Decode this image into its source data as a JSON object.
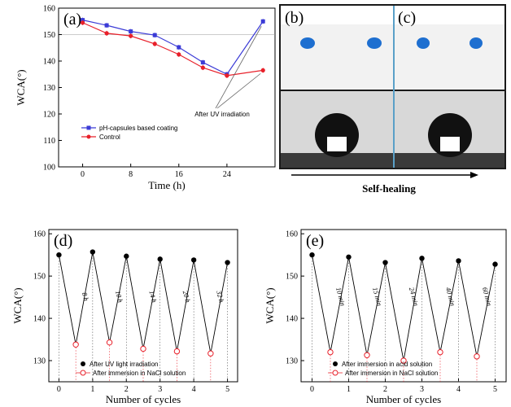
{
  "chart_data": [
    {
      "type": "line",
      "panel": "(a)",
      "xlabel": "Time (h)",
      "ylabel": "WCA(°)",
      "xlim": [
        -4,
        32
      ],
      "ylim": [
        100,
        160
      ],
      "xticks": [
        0,
        8,
        16,
        24
      ],
      "yticks": [
        100,
        110,
        120,
        130,
        140,
        150,
        160
      ],
      "reference_line_y": 150,
      "series": [
        {
          "name": "pH-capsules based coating",
          "color": "#3b3bd6",
          "marker": "square",
          "x": [
            0,
            4,
            8,
            12,
            16,
            20,
            24,
            30
          ],
          "y": [
            155.5,
            153.5,
            151.2,
            149.8,
            145.2,
            139.5,
            135.0,
            155.0
          ]
        },
        {
          "name": "Control",
          "color": "#e8202a",
          "marker": "circle",
          "x": [
            0,
            4,
            8,
            12,
            16,
            20,
            24,
            30
          ],
          "y": [
            154.5,
            150.5,
            149.5,
            146.5,
            142.5,
            137.5,
            134.5,
            136.5
          ]
        }
      ],
      "annotation": "After UV irradiation"
    },
    {
      "type": "line",
      "panel": "(d)",
      "xlabel": "Number of cycles",
      "ylabel": "WCA(°)",
      "xlim": [
        -0.3,
        5.3
      ],
      "ylim": [
        125,
        161
      ],
      "xticks": [
        0,
        1,
        2,
        3,
        4,
        5
      ],
      "yticks": [
        130,
        140,
        150,
        160
      ],
      "series": [
        {
          "name": "After UV light irradiation",
          "marker": "filled-circle",
          "x": [
            0,
            1,
            2,
            3,
            4,
            5
          ],
          "y": [
            155.0,
            155.7,
            154.7,
            154.0,
            153.8,
            153.2
          ]
        },
        {
          "name": "After immersion in NaCl solution",
          "marker": "open-circle",
          "color": "#e8202a",
          "x": [
            0.5,
            1.5,
            2.5,
            3.5,
            4.5
          ],
          "y": [
            133.8,
            134.3,
            132.8,
            132.2,
            131.7
          ]
        }
      ],
      "intervals": [
        "8 h",
        "10 h",
        "14 h",
        "20 h",
        "32 h"
      ]
    },
    {
      "type": "line",
      "panel": "(e)",
      "xlabel": "Number of cycles",
      "ylabel": "WCA(°)",
      "xlim": [
        -0.3,
        5.3
      ],
      "ylim": [
        125,
        161
      ],
      "xticks": [
        0,
        1,
        2,
        3,
        4,
        5
      ],
      "yticks": [
        130,
        140,
        150,
        160
      ],
      "series": [
        {
          "name": "After  immersion in acid solution",
          "marker": "filled-circle",
          "x": [
            0,
            1,
            2,
            3,
            4,
            5
          ],
          "y": [
            155.0,
            154.5,
            153.2,
            154.2,
            153.6,
            152.8
          ]
        },
        {
          "name": "After  immersion in NaCl solution",
          "marker": "open-circle",
          "color": "#e8202a",
          "x": [
            0.5,
            1.5,
            2.5,
            3.5,
            4.5
          ],
          "y": [
            132.0,
            131.3,
            130.0,
            132.0,
            131.0
          ]
        }
      ],
      "intervals": [
        "10 min",
        "15 min",
        "24 min",
        "40 min",
        "60 min"
      ]
    }
  ],
  "photo_panels": {
    "left_label": "(b)",
    "right_label": "(c)",
    "caption": "Self-healing"
  }
}
